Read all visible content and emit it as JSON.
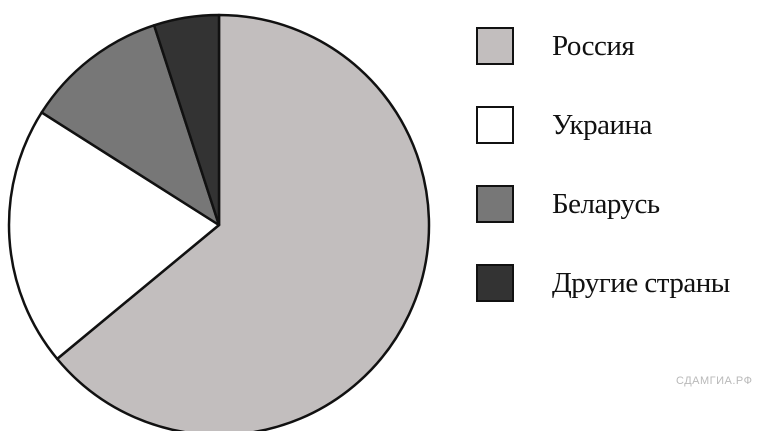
{
  "chart_data": {
    "type": "pie",
    "categories": [
      "Россия",
      "Украина",
      "Беларусь",
      "Другие страны"
    ],
    "values": [
      64,
      20,
      11,
      5
    ],
    "colors": [
      "#c2bebe",
      "#ffffff",
      "#777777",
      "#333333"
    ],
    "start": "top",
    "direction": "clockwise"
  },
  "legend": {
    "placement": "right",
    "items": [
      {
        "label": "Россия",
        "color": "#c2bebe"
      },
      {
        "label": "Украина",
        "color": "#ffffff"
      },
      {
        "label": "Беларусь",
        "color": "#777777"
      },
      {
        "label": "Другие страны",
        "color": "#333333"
      }
    ]
  },
  "watermark": "СДАМГИА.РФ"
}
